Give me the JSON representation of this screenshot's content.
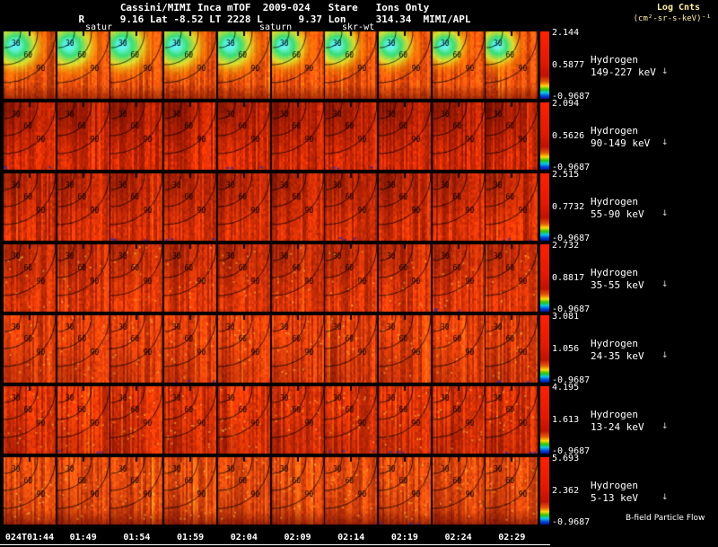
{
  "header": {
    "title": "Cassini/MIMI Inca mTOF  2009-024   Stare   Ions Only",
    "subtitle": "R      9.16 Lat -8.52 LT 2228 L      9.37 Lon     314.34  MIMI/APL",
    "log_label_1": "Log Cnts",
    "log_label_2": "(cm²-sr-s-keV)⁻¹",
    "annotations": [
      {
        "text": "satur"
      },
      {
        "text": "saturn"
      },
      {
        "text": "skr-wt"
      }
    ]
  },
  "icons": {
    "row_arrow": "↓"
  },
  "footer": {
    "flow_label": "B-field Particle Flow"
  },
  "chart_data": {
    "type": "heatmap",
    "title": "Cassini/MIMI Inca mTOF 2009-024 Stare Ions Only",
    "colorbar_title": "Log Cnts (cm²-sr-s-keV)⁻¹",
    "instrument": "MIMI/APL",
    "columns": [
      "024T01:44",
      "01:49",
      "01:54",
      "01:59",
      "02:04",
      "02:09",
      "02:14",
      "02:19",
      "02:24",
      "02:29"
    ],
    "contour_labels": [
      "30",
      "60",
      "90"
    ],
    "rows": [
      {
        "species": "Hydrogen",
        "energy": "149-227 keV",
        "cbar_max": "2.144",
        "cbar_mid": "0.5877",
        "cbar_min": "-0.9687"
      },
      {
        "species": "Hydrogen",
        "energy": "90-149 keV",
        "cbar_max": "2.094",
        "cbar_mid": "0.5626",
        "cbar_min": "-0.9687"
      },
      {
        "species": "Hydrogen",
        "energy": "55-90 keV",
        "cbar_max": "2.515",
        "cbar_mid": "0.7732",
        "cbar_min": "-0.9687"
      },
      {
        "species": "Hydrogen",
        "energy": "35-55 keV",
        "cbar_max": "2.732",
        "cbar_mid": "0.8817",
        "cbar_min": "-0.9687"
      },
      {
        "species": "Hydrogen",
        "energy": "24-35 keV",
        "cbar_max": "3.081",
        "cbar_mid": "1.056",
        "cbar_min": "-0.9687"
      },
      {
        "species": "Hydrogen",
        "energy": "13-24 keV",
        "cbar_max": "4.195",
        "cbar_mid": "1.613",
        "cbar_min": "-0.9687"
      },
      {
        "species": "Hydrogen",
        "energy": "5-13 keV",
        "cbar_max": "5.693",
        "cbar_mid": "2.362",
        "cbar_min": "-0.9687"
      }
    ],
    "colorbar_gradient": [
      {
        "color": "#ff2000",
        "pos": "0%"
      },
      {
        "color": "#e61800",
        "pos": "45%"
      },
      {
        "color": "#c31000",
        "pos": "66%"
      },
      {
        "color": "#e85800",
        "pos": "75%"
      },
      {
        "color": "#ffd800",
        "pos": "81%"
      },
      {
        "color": "#30c800",
        "pos": "86%"
      },
      {
        "color": "#00c8e8",
        "pos": "91%"
      },
      {
        "color": "#0040e0",
        "pos": "96%"
      },
      {
        "color": "#001890",
        "pos": "100%"
      }
    ]
  }
}
